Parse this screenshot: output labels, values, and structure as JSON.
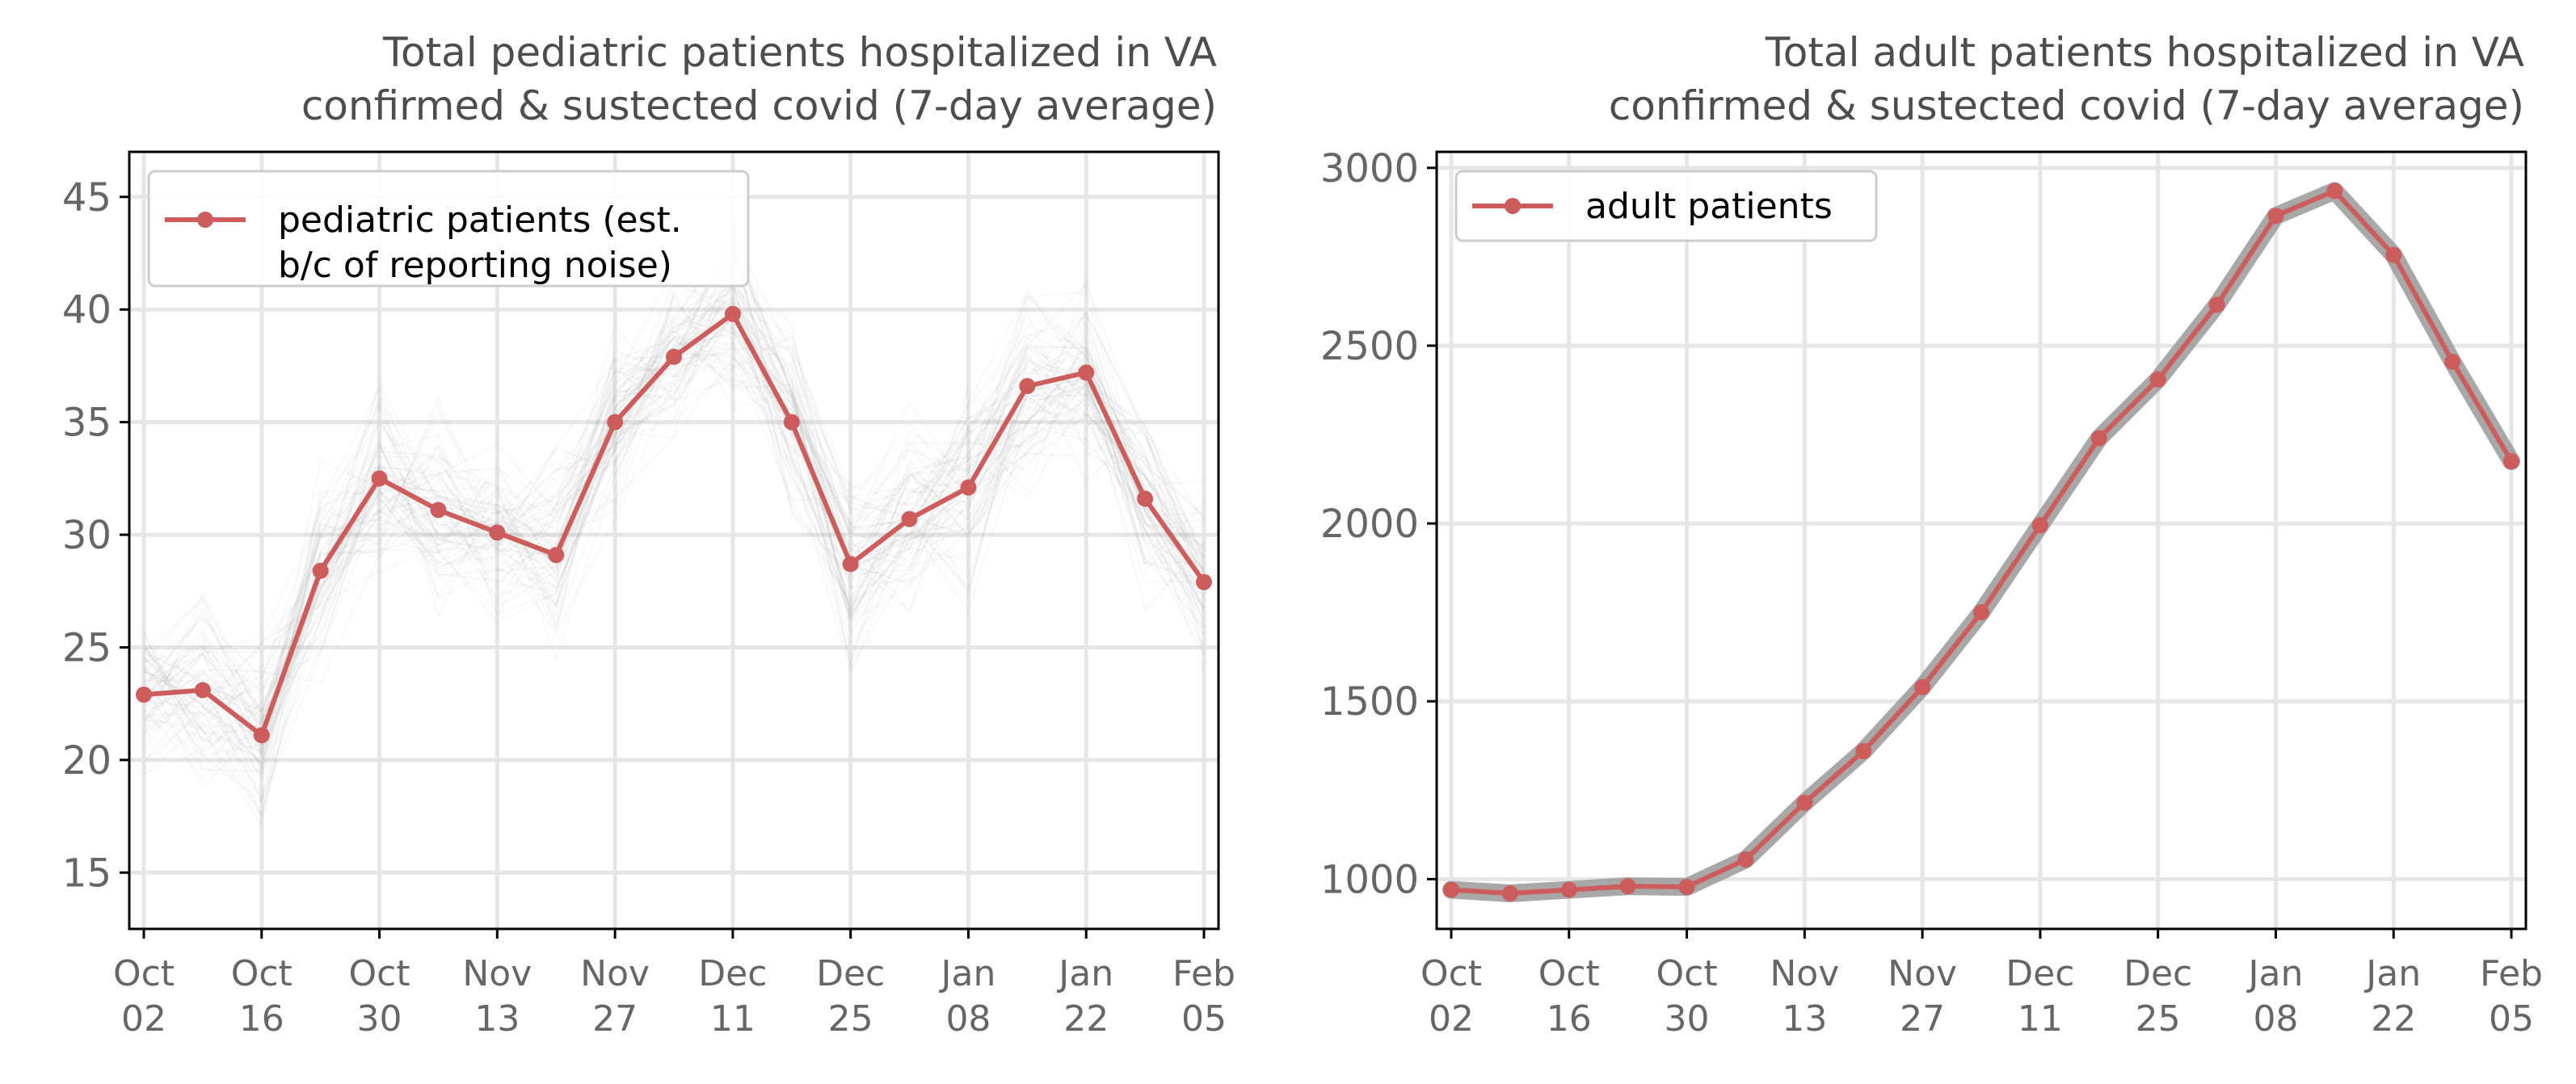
{
  "colors": {
    "series": "#cd5c5c",
    "band": "#999999",
    "grid": "#e6e6e6",
    "axis": "#000000",
    "title_text": "#4d4d4d",
    "tick_text": "#666666"
  },
  "chart_data": [
    {
      "type": "line",
      "title": "Total pediatric patients hospitalized in VA\nconfirmed & sustected covid (7-day average)",
      "xlabel": "",
      "ylabel": "",
      "x_tick_labels": [
        "Oct\n02",
        "Oct\n16",
        "Oct\n30",
        "Nov\n13",
        "Nov\n27",
        "Dec\n11",
        "Dec\n25",
        "Jan\n08",
        "Jan\n22",
        "Feb\n05"
      ],
      "yticks": [
        15,
        20,
        25,
        30,
        35,
        40,
        45
      ],
      "ylim": [
        12.5,
        47
      ],
      "grid": true,
      "legend": {
        "position": "top-left",
        "entries": [
          "pediatric patients (est.\nb/c of reporting noise)"
        ]
      },
      "series": [
        {
          "name": "pediatric patients (est.\nb/c of reporting noise)",
          "values": [
            22.9,
            23.1,
            21.1,
            28.4,
            32.5,
            31.1,
            30.1,
            29.1,
            35.0,
            37.9,
            39.8,
            35.0,
            28.7,
            30.7,
            32.1,
            36.6,
            37.2,
            31.6,
            27.9
          ]
        }
      ],
      "uncertainty_spread": 3.5
    },
    {
      "type": "line",
      "title": "Total adult patients hospitalized in VA\nconfirmed & sustected covid (7-day average)",
      "xlabel": "",
      "ylabel": "",
      "x_tick_labels": [
        "Oct\n02",
        "Oct\n16",
        "Oct\n30",
        "Nov\n13",
        "Nov\n27",
        "Dec\n11",
        "Dec\n25",
        "Jan\n08",
        "Jan\n22",
        "Feb\n05"
      ],
      "yticks": [
        1000,
        1500,
        2000,
        2500,
        3000
      ],
      "ylim": [
        860,
        3045
      ],
      "grid": true,
      "legend": {
        "position": "top-left",
        "entries": [
          "adult patients"
        ]
      },
      "series": [
        {
          "name": "adult patients",
          "values": [
            970,
            960,
            970,
            980,
            978,
            1055,
            1215,
            1360,
            1540,
            1750,
            1995,
            2240,
            2405,
            2615,
            2865,
            2935,
            2755,
            2455,
            2175
          ]
        }
      ]
    }
  ]
}
